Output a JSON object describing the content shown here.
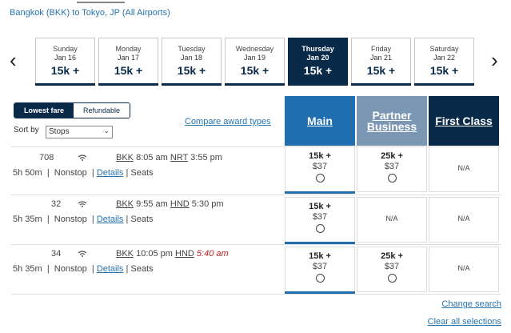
{
  "route": "Bangkok (BKK) to Tokyo, JP (All Airports)",
  "nav": {
    "prev": "‹",
    "next": "›"
  },
  "dates": [
    {
      "day": "Sunday",
      "date": "Jan 16",
      "price": "15k +"
    },
    {
      "day": "Monday",
      "date": "Jan 17",
      "price": "15k +"
    },
    {
      "day": "Tuesday",
      "date": "Jan 18",
      "price": "15k +"
    },
    {
      "day": "Wednesday",
      "date": "Jan 19",
      "price": "15k +"
    },
    {
      "day": "Thursday",
      "date": "Jan 20",
      "price": "15k +"
    },
    {
      "day": "Friday",
      "date": "Jan 21",
      "price": "15k +"
    },
    {
      "day": "Saturday",
      "date": "Jan 22",
      "price": "15k +"
    }
  ],
  "toggle": {
    "lowest": "Lowest fare",
    "refundable": "Refundable"
  },
  "sort": {
    "label": "Sort by",
    "value": "Stops"
  },
  "compare": "Compare award types",
  "fare_headers": [
    {
      "label": "Main",
      "color": "#1f6eb0"
    },
    {
      "label": "Partner Business",
      "color": "#7b97b3"
    },
    {
      "label": "First Class",
      "color": "#0a2a4a"
    }
  ],
  "flights": [
    {
      "number": "708",
      "origin": "BKK",
      "dep": "8:05 am",
      "dest": "NRT",
      "arr": "3:55 pm",
      "duration": "5h 50m",
      "stops": "Nonstop",
      "details": "Details",
      "seats": "Seats",
      "fares": [
        {
          "points": "15k +",
          "fee": "$37"
        },
        {
          "points": "25k +",
          "fee": "$37"
        },
        {
          "na": "N/A"
        }
      ]
    },
    {
      "number": "32",
      "origin": "BKK",
      "dep": "9:55 am",
      "dest": "HND",
      "arr": "5:30 pm",
      "duration": "5h 35m",
      "stops": "Nonstop",
      "details": "Details",
      "seats": "Seats",
      "fares": [
        {
          "points": "15k +",
          "fee": "$37"
        },
        {
          "na": "N/A"
        },
        {
          "na": "N/A"
        }
      ]
    },
    {
      "number": "34",
      "origin": "BKK",
      "dep": "10:05 pm",
      "dest": "HND",
      "arr": "5:40 am",
      "duration": "5h 35m",
      "stops": "Nonstop",
      "details": "Details",
      "seats": "Seats",
      "fares": [
        {
          "points": "15k +",
          "fee": "$37"
        },
        {
          "points": "25k +",
          "fee": "$37"
        },
        {
          "na": "N/A"
        }
      ]
    }
  ],
  "footer": {
    "change": "Change search",
    "clear": "Clear all selections"
  }
}
